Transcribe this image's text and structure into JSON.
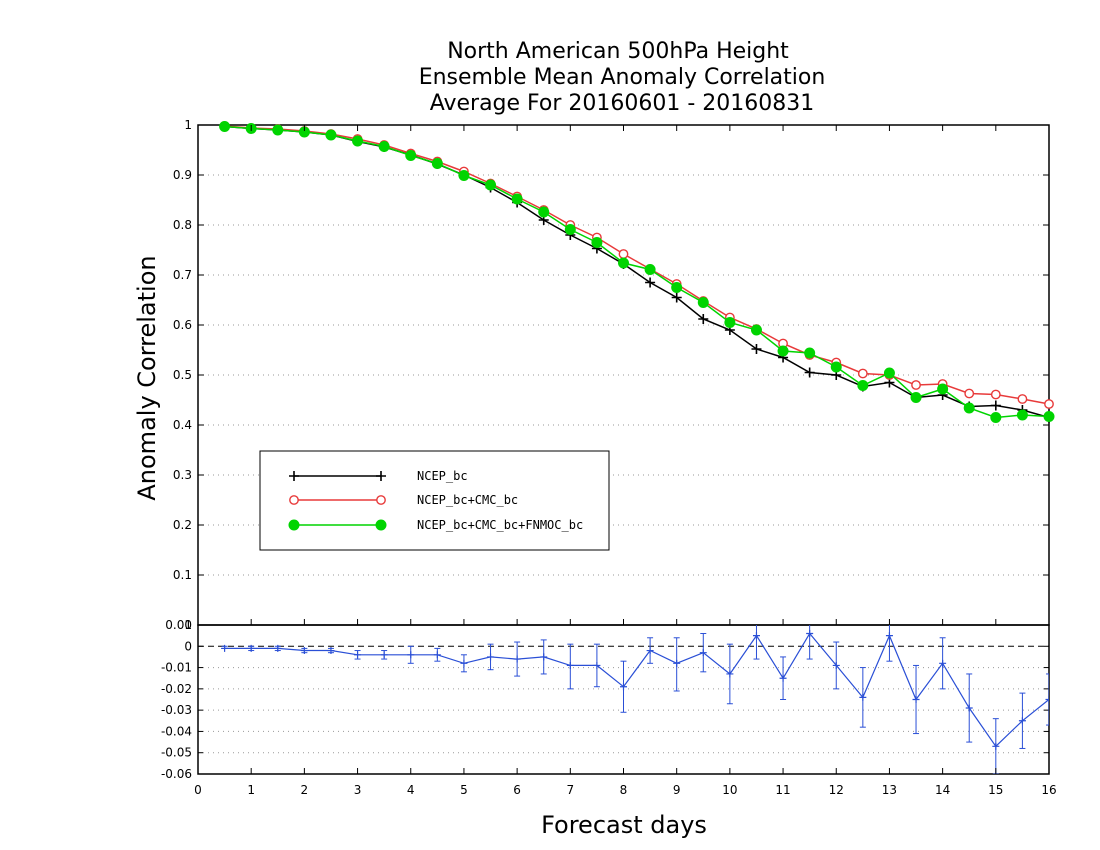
{
  "title": {
    "line1": "North American 500hPa Height",
    "line2": "Ensemble Mean Anomaly Correlation",
    "line3": "Average For 20160601 - 20160831"
  },
  "colors": {
    "ncep": "#000000",
    "ncep_cmc": "#e83a3a",
    "ncep_cmc_fnmoc": "#00d400",
    "diff": "#2a4fd6"
  },
  "chart_data": [
    {
      "type": "line",
      "xlabel": "Forecast days",
      "ylabel": "Anomaly Correlation",
      "xlim": [
        0,
        16
      ],
      "ylim": [
        0,
        1
      ],
      "grid": true,
      "legend_position": "left",
      "x": [
        0.5,
        1,
        1.5,
        2,
        2.5,
        3,
        3.5,
        4,
        4.5,
        5,
        5.5,
        6,
        6.5,
        7,
        7.5,
        8,
        8.5,
        9,
        9.5,
        10,
        10.5,
        11,
        11.5,
        12,
        12.5,
        13,
        13.5,
        14,
        14.5,
        15,
        15.5,
        16
      ],
      "series": [
        {
          "name": "NCEP_bc",
          "marker": "plus",
          "values": [
            0.997,
            0.993,
            0.99,
            0.986,
            0.98,
            0.967,
            0.956,
            0.94,
            0.922,
            0.9,
            0.875,
            0.845,
            0.81,
            0.78,
            0.753,
            0.722,
            0.685,
            0.655,
            0.612,
            0.59,
            0.552,
            0.535,
            0.505,
            0.5,
            0.477,
            0.485,
            0.455,
            0.46,
            0.437,
            0.439,
            0.43,
            0.415
          ]
        },
        {
          "name": "NCEP_bc+CMC_bc",
          "marker": "open-circle",
          "values": [
            0.998,
            0.994,
            0.992,
            0.988,
            0.982,
            0.972,
            0.96,
            0.943,
            0.927,
            0.907,
            0.883,
            0.857,
            0.83,
            0.8,
            0.775,
            0.742,
            0.712,
            0.682,
            0.648,
            0.615,
            0.592,
            0.563,
            0.54,
            0.525,
            0.503,
            0.5,
            0.48,
            0.482,
            0.463,
            0.461,
            0.452,
            0.442
          ]
        },
        {
          "name": "NCEP_bc+CMC_bc+FNMOC_bc",
          "marker": "filled-circle",
          "values": [
            0.997,
            0.993,
            0.99,
            0.986,
            0.98,
            0.968,
            0.957,
            0.939,
            0.923,
            0.899,
            0.88,
            0.852,
            0.826,
            0.791,
            0.765,
            0.724,
            0.711,
            0.675,
            0.645,
            0.605,
            0.59,
            0.548,
            0.544,
            0.516,
            0.479,
            0.504,
            0.455,
            0.472,
            0.434,
            0.415,
            0.42,
            0.417
          ]
        }
      ]
    },
    {
      "type": "line",
      "xlabel": "Forecast days",
      "ylim": [
        -0.06,
        0.01
      ],
      "yticks": [
        0.01,
        0,
        -0.01,
        -0.02,
        -0.03,
        -0.04,
        -0.05,
        -0.06
      ],
      "ytick_labels": [
        "0.01",
        "0",
        "-0.01",
        "-0.02",
        "-0.03",
        "-0.04",
        "-0.05",
        "-0.06"
      ],
      "top_tick_label": "0",
      "zero_line": "dashed",
      "x": [
        0.5,
        1,
        1.5,
        2,
        2.5,
        3,
        3.5,
        4,
        4.5,
        5,
        5.5,
        6,
        6.5,
        7,
        7.5,
        8,
        8.5,
        9,
        9.5,
        10,
        10.5,
        11,
        11.5,
        12,
        12.5,
        13,
        13.5,
        14,
        14.5,
        15,
        15.5,
        16
      ],
      "series": [
        {
          "marker": "plus",
          "values": [
            -0.001,
            -0.001,
            -0.001,
            -0.002,
            -0.002,
            -0.004,
            -0.004,
            -0.004,
            -0.004,
            -0.008,
            -0.005,
            -0.006,
            -0.005,
            -0.009,
            -0.009,
            -0.019,
            -0.002,
            -0.008,
            -0.003,
            -0.013,
            0.005,
            -0.015,
            0.006,
            -0.009,
            -0.024,
            0.005,
            -0.025,
            -0.008,
            -0.029,
            -0.047,
            -0.035,
            -0.025
          ],
          "error_low": [
            -0.001,
            -0.002,
            -0.002,
            -0.003,
            -0.003,
            -0.006,
            -0.006,
            -0.008,
            -0.007,
            -0.012,
            -0.011,
            -0.014,
            -0.013,
            -0.02,
            -0.019,
            -0.031,
            -0.008,
            -0.021,
            -0.012,
            -0.027,
            -0.006,
            -0.025,
            -0.006,
            -0.02,
            -0.038,
            -0.007,
            -0.041,
            -0.02,
            -0.045,
            -0.06,
            -0.048,
            -0.037
          ],
          "error_high": [
            0.0,
            -0.0,
            -0.0,
            -0.001,
            -0.001,
            -0.002,
            -0.002,
            0.0,
            -0.001,
            -0.004,
            0.001,
            0.002,
            0.003,
            0.001,
            0.001,
            -0.007,
            0.004,
            0.004,
            0.006,
            0.001,
            0.016,
            -0.005,
            0.018,
            0.002,
            -0.01,
            0.017,
            -0.009,
            0.004,
            -0.013,
            -0.034,
            -0.022,
            -0.013
          ]
        }
      ]
    }
  ]
}
